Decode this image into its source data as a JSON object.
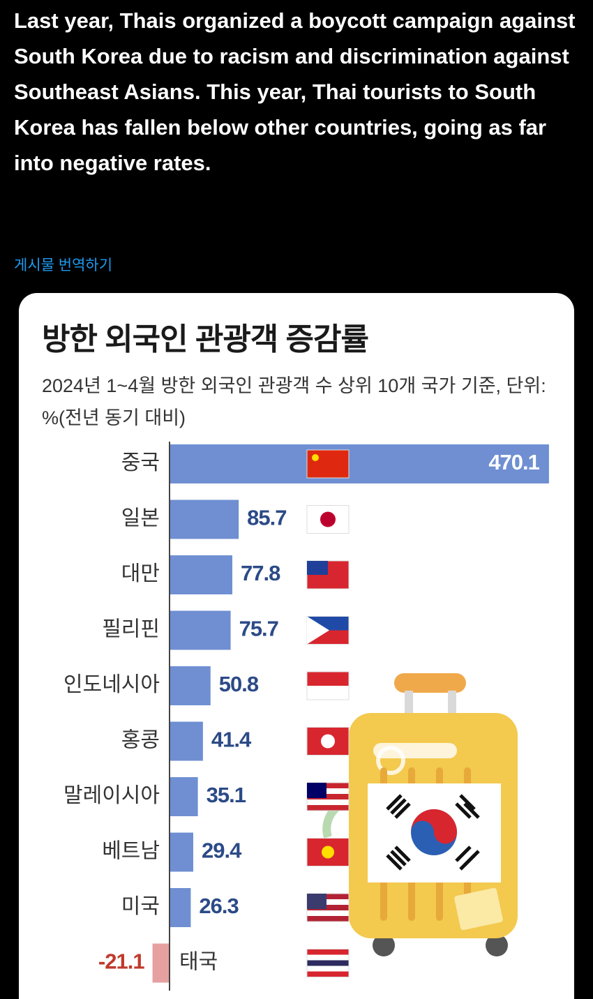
{
  "post": {
    "text": "Last year, Thais organized a boycott campaign against South Korea due to racism and discrimination against Southeast Asians. This year, Thai tourists to South Korea has fallen below other countries, going as far into negative rates.",
    "translate": "게시물 번역하기"
  },
  "chart_data": {
    "type": "bar",
    "orientation": "horizontal",
    "title": "방한 외국인 관광객 증감률",
    "subtitle": "2024년 1~4월 방한 외국인 관광객 수 상위 10개 국가 기준, 단위: %(전년 동기 대비)",
    "categories": [
      "중국",
      "일본",
      "대만",
      "필리핀",
      "인도네시아",
      "홍콩",
      "말레이시아",
      "베트남",
      "미국",
      "태국"
    ],
    "values": [
      470.1,
      85.7,
      77.8,
      75.7,
      50.8,
      41.4,
      35.1,
      29.4,
      26.3,
      -21.1
    ],
    "color": "#6f8fd2",
    "negative_color": "#e6a0a0"
  }
}
